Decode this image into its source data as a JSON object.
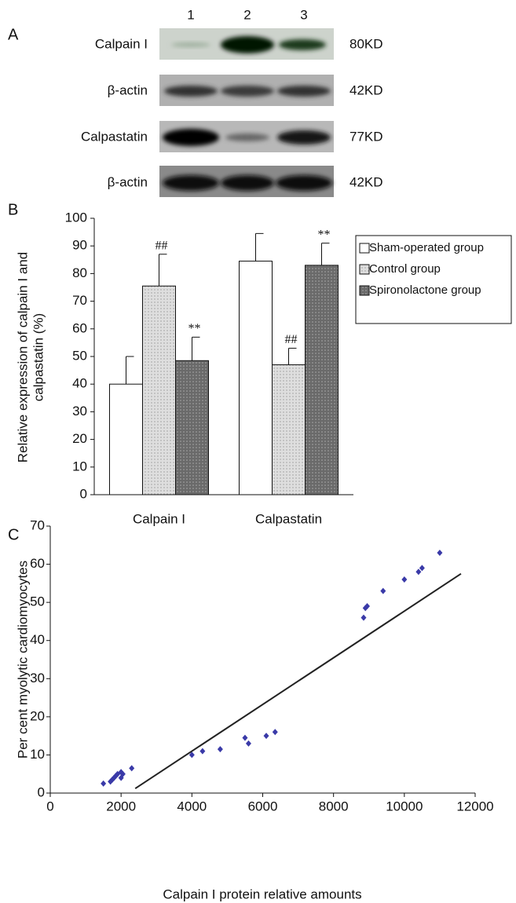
{
  "panel_labels": [
    "A",
    "B",
    "C"
  ],
  "blot": {
    "lanes": [
      "1",
      "2",
      "3"
    ],
    "rows": [
      {
        "protein": "Calpain I",
        "size": "80KD"
      },
      {
        "protein": "β-actin",
        "size": "42KD"
      },
      {
        "protein": "Calpastatin",
        "size": "77KD"
      },
      {
        "protein": "β-actin",
        "size": "42KD"
      }
    ]
  },
  "chart_data": [
    {
      "type": "bar",
      "categories": [
        "Calpain I",
        "Calpastatin"
      ],
      "ylabel": [
        "Relative expression of calpain I and",
        "calpastatin (%)"
      ],
      "ylim": [
        0,
        100
      ],
      "yticks": [
        0,
        10,
        20,
        30,
        40,
        50,
        60,
        70,
        80,
        90,
        100
      ],
      "legend": "right",
      "series": [
        {
          "name": "Sham-operated group",
          "color": "#ffffff",
          "values": [
            40,
            84.5
          ],
          "errors": [
            10,
            10
          ]
        },
        {
          "name": "Control group",
          "color": "#d9d9d9",
          "values": [
            75.5,
            47
          ],
          "errors": [
            11.5,
            6
          ],
          "annotations": [
            "##",
            "##"
          ]
        },
        {
          "name": "Spironolactone group",
          "color": "#707070",
          "values": [
            48.5,
            83
          ],
          "errors": [
            8.5,
            8
          ],
          "annotations": [
            "**",
            "**"
          ]
        }
      ]
    },
    {
      "type": "scatter",
      "xlabel": "Calpain I protein relative amounts",
      "ylabel": "Per cent myolytic cardiomyocytes",
      "xlim": [
        0,
        12000
      ],
      "xticks": [
        0,
        2000,
        4000,
        6000,
        8000,
        10000,
        12000
      ],
      "ylim": [
        0,
        70
      ],
      "yticks": [
        0,
        10,
        20,
        30,
        40,
        50,
        60,
        70
      ],
      "color": "#3a3aa8",
      "x": [
        1500,
        1700,
        1750,
        1800,
        1850,
        1900,
        2000,
        2000,
        2050,
        2300,
        4000,
        4300,
        4800,
        5500,
        5600,
        6100,
        6350,
        8850,
        8900,
        8950,
        9400,
        10000,
        10400,
        10500,
        11000
      ],
      "y": [
        2.5,
        3,
        3.5,
        4,
        4.5,
        5,
        4,
        5.5,
        5,
        6.5,
        10,
        11,
        11.5,
        14.5,
        13,
        15,
        16,
        46,
        48.5,
        49,
        53,
        56,
        58,
        59,
        63
      ],
      "trendline": {
        "x": [
          2400,
          11600
        ],
        "y": [
          1.2,
          57.5
        ]
      }
    }
  ]
}
